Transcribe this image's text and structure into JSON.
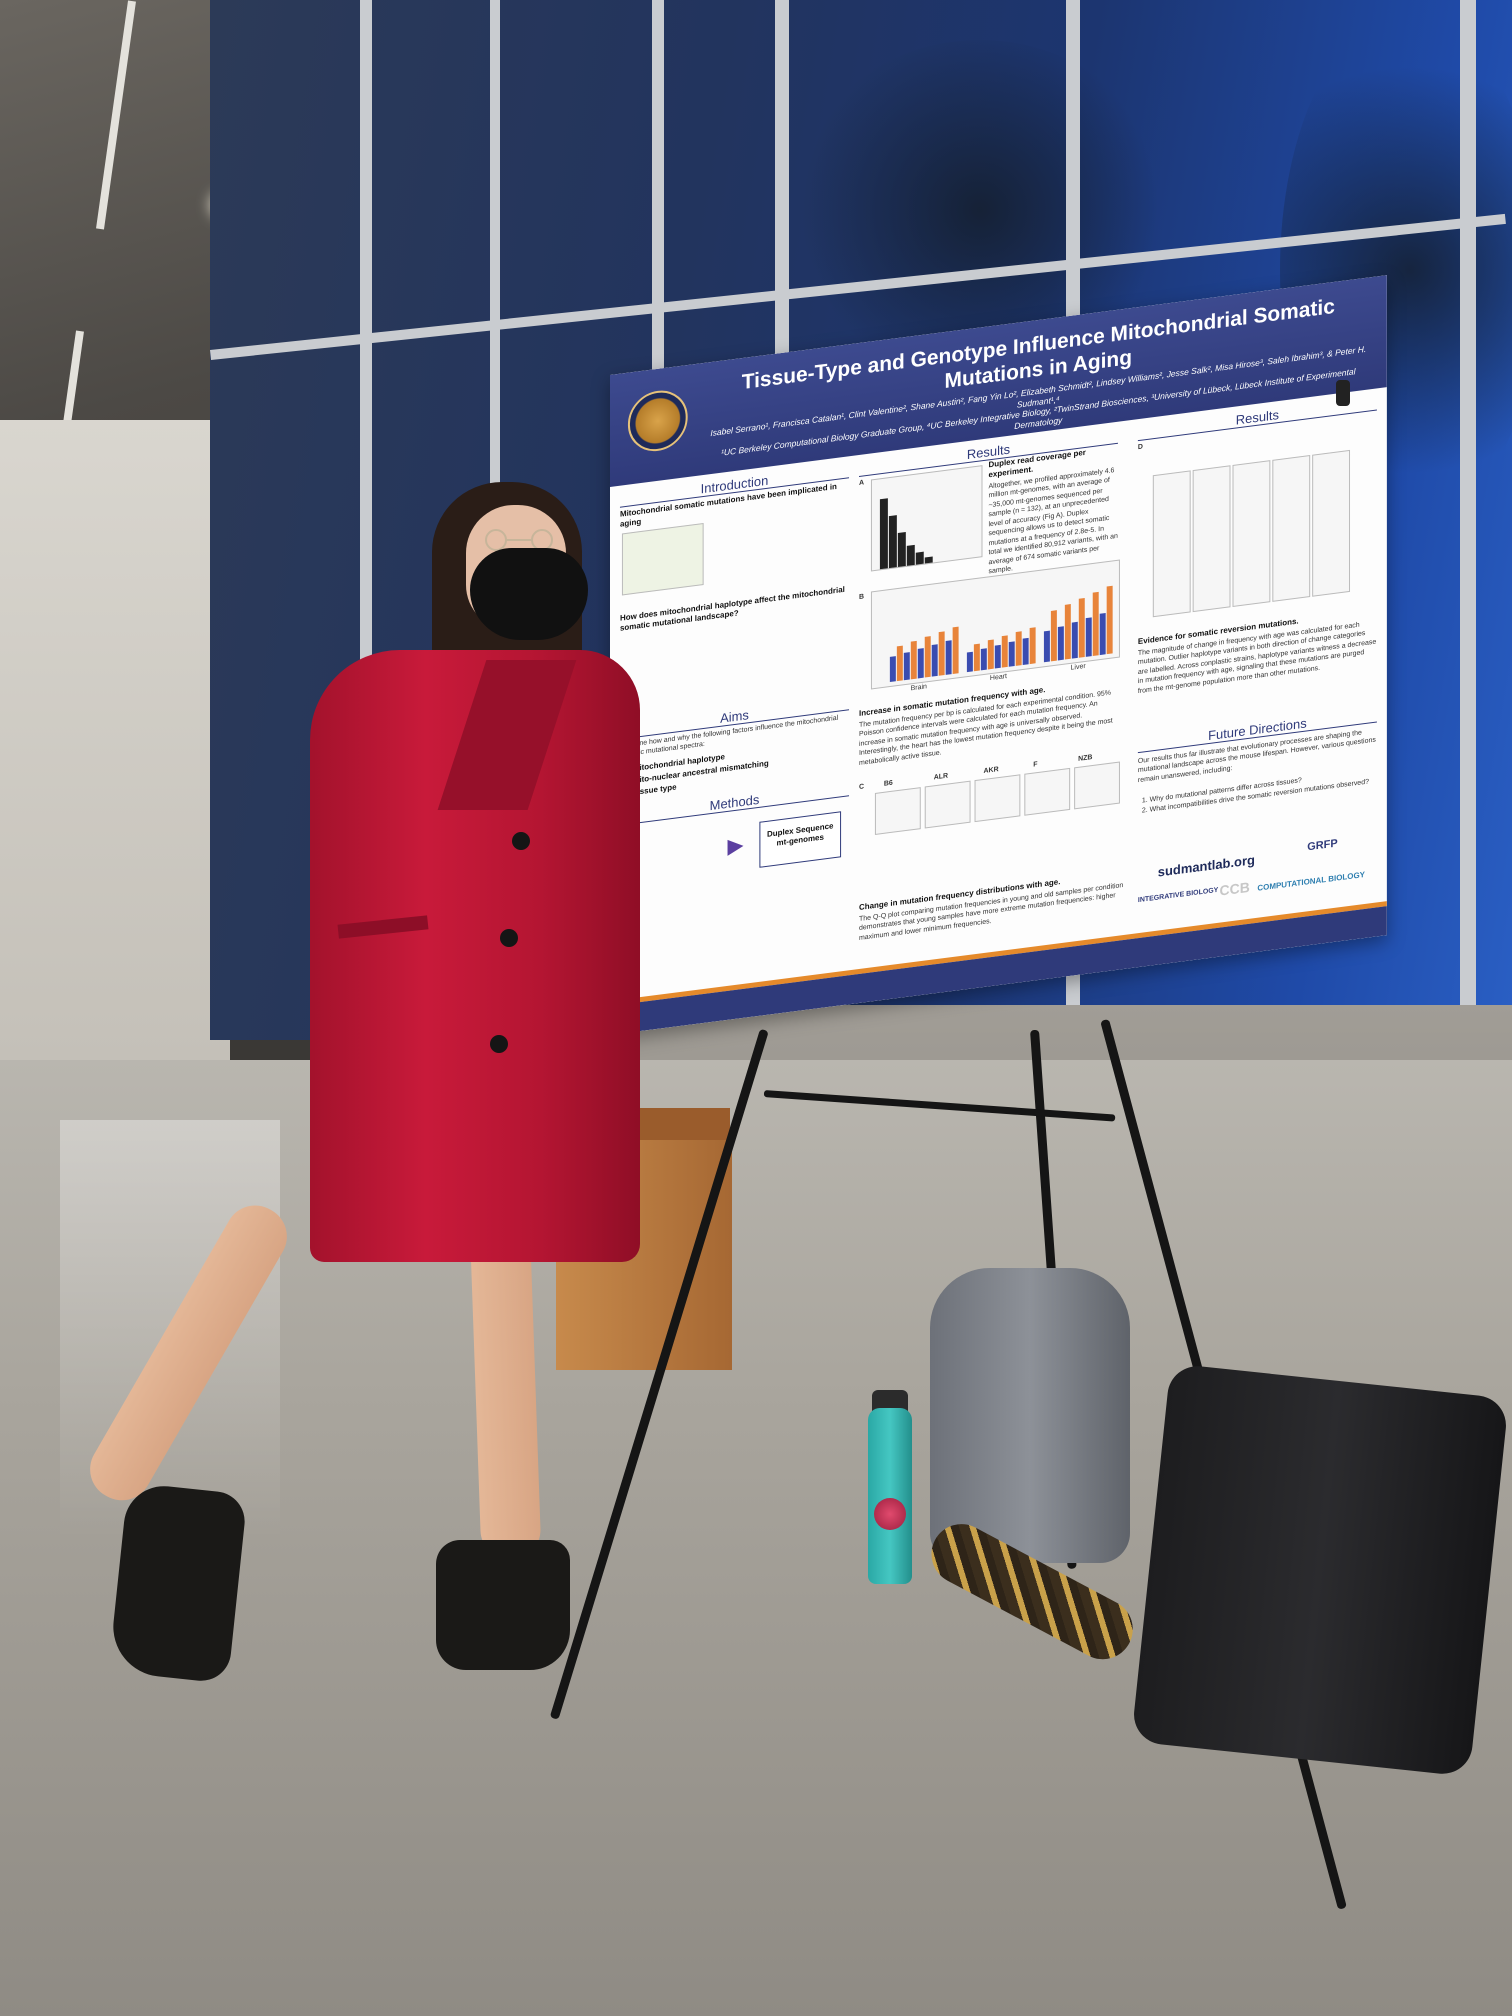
{
  "poster": {
    "title": "Tissue-Type and Genotype Influence Mitochondrial Somatic Mutations in Aging",
    "authors": "Isabel Serrano¹, Francisca Catalan¹, Clint Valentine², Shane Austin², Fang Yin Lo², Elizabeth Schmidt², Lindsey Williams², Jesse Salk², Misa Hirose³, Saleh Ibrahim³, & Peter H. Sudmant¹,⁴",
    "affiliations": "¹UC Berkeley Computational Biology Graduate Group, ⁴UC Berkeley Integrative Biology, ²TwinStrand Biosciences, ³University of Lübeck, Lübeck Institute of Experimental Dermatology",
    "sections": {
      "introduction": "Introduction",
      "intro_heading": "Mitochondrial somatic mutations have been implicated in aging",
      "haplotype_heading": "How does mitochondrial haplotype affect the mitochondrial somatic mutational landscape?",
      "aims": "Aims",
      "aims_intro": "Examine how and why the following factors influence the mitochondrial somatic mutational spectra:",
      "aims_list": [
        "1. Mitochondrial haplotype",
        "2. Mito-nuclear ancestral mismatching",
        "3. Tissue type"
      ],
      "methods": "Methods",
      "methods_box": "Duplex Sequence mt-genomes",
      "results": "Results",
      "results_coverage": "Duplex read coverage per experiment.",
      "results_coverage_body": "Altogether, we profiled approximately 4.6 million mt-genomes, with an average of ~35,000 mt-genomes sequenced per sample (n = 132), at an unprecedented level of accuracy (Fig A). Duplex sequencing allows us to detect somatic mutations at a frequency of 2.8e-5. In total we identified 80,912 variants, with an average of 674 somatic variants per sample.",
      "results_increase": "Increase in somatic mutation frequency with age.",
      "results_increase_body": "The mutation frequency per bp is calculated for each experimental condition. 95% Poisson confidence intervals were calculated for each mutation frequency. An increase in somatic mutation frequency with age is universally observed. Interestingly, the heart has the lowest mutation frequency despite it being the most metabolically active tissue.",
      "results_change": "Change in mutation frequency distributions with age.",
      "results_change_body": "The Q-Q plot comparing mutation frequencies in young and old samples per condition demonstrates that young samples have more extreme mutation frequencies: higher maximum and lower minimum frequencies.",
      "results_right": "Results",
      "reversion": "Evidence for somatic reversion mutations.",
      "reversion_body": "The magnitude of change in frequency with age was calculated for each mutation. Outlier haplotype variants in both direction of change categories are labelled. Across conplastic strains, haplotype variants witness a decrease in mutation frequency with age, signaling that these mutations are purged from the mt-genome population more than other mutations.",
      "future": "Future Directions",
      "future_body": "Our results thus far illustrate that evolutionary processes are shaping the mutational landscape across the mouse lifespan. However, various questions remain unanswered, including:",
      "future_list": [
        "1. Why do mutational patterns differ across tissues?",
        "2. What incompatibilities drive the somatic reversion mutations observed?"
      ]
    },
    "panel_labels": [
      "A",
      "B",
      "C",
      "D"
    ],
    "strains": [
      "B6",
      "ALR",
      "AKR",
      "F",
      "NZB"
    ],
    "tissues": [
      "Brain",
      "Heart",
      "Liver"
    ],
    "footer": {
      "url": "sudmantlab.org",
      "logo_ccb": "CCB",
      "logo_ib": "INTEGRATIVE BIOLOGY",
      "logo_cb": "COMPUTATIONAL BIOLOGY",
      "logo_grfp": "GRFP"
    },
    "colors": {
      "header": "#2f3a7a",
      "accent": "#e58a2b",
      "bar_young": "#3a4cb0",
      "bar_old": "#e8843a"
    }
  },
  "bar_chart": {
    "type": "bar",
    "groups": [
      "Brain",
      "Heart",
      "Liver"
    ],
    "series": [
      {
        "values": [
          0.45,
          0.35,
          0.55
        ]
      },
      {
        "values": [
          0.62,
          0.48,
          0.9
        ]
      }
    ]
  }
}
